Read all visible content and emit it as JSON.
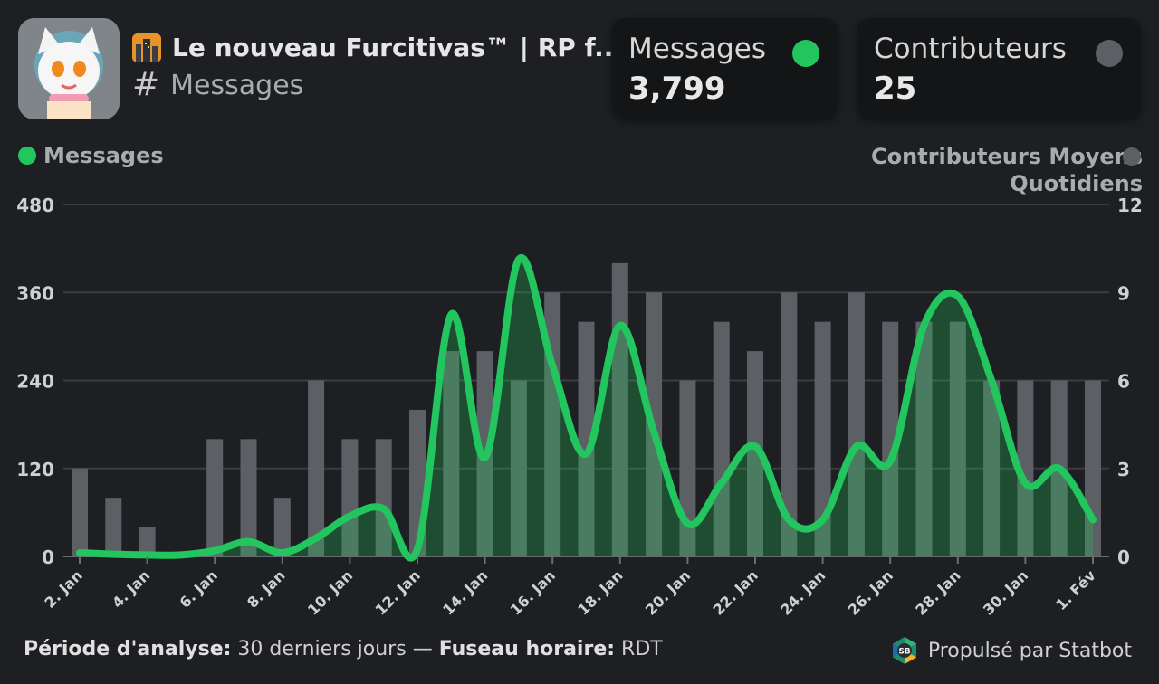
{
  "header": {
    "server_name": "Le nouveau Furcitivas™ | RP f...",
    "channel_name": "Messages",
    "server_icon": "city-icon",
    "channel_icon": "hash-icon"
  },
  "stats": {
    "messages": {
      "label": "Messages",
      "value": "3,799",
      "color": "#22c55e"
    },
    "contributors": {
      "label": "Contributeurs",
      "value": "25",
      "color": "#5c5f63"
    }
  },
  "legend": {
    "left": "Messages",
    "right": "Contributeurs Moyens\nQuotidiens"
  },
  "footer": {
    "period_label": "Période d'analyse:",
    "period_value": "30 derniers jours",
    "separator": "—",
    "tz_label": "Fuseau horaire:",
    "tz_value": "RDT",
    "powered": "Propulsé par Statbot"
  },
  "chart_data": {
    "type": "bar+line",
    "dates": [
      "2. Jan",
      "3. Jan",
      "4. Jan",
      "5. Jan",
      "6. Jan",
      "7. Jan",
      "8. Jan",
      "9. Jan",
      "10. Jan",
      "11. Jan",
      "12. Jan",
      "13. Jan",
      "14. Jan",
      "15. Jan",
      "16. Jan",
      "17. Jan",
      "18. Jan",
      "19. Jan",
      "20. Jan",
      "21. Jan",
      "22. Jan",
      "23. Jan",
      "24. Jan",
      "25. Jan",
      "26. Jan",
      "27. Jan",
      "28. Jan",
      "29. Jan",
      "30. Jan",
      "31. Jan",
      "1. Fév"
    ],
    "x_tick_labels": [
      "2. Jan",
      "4. Jan",
      "6. Jan",
      "8. Jan",
      "10. Jan",
      "12. Jan",
      "14. Jan",
      "16. Jan",
      "18. Jan",
      "20. Jan",
      "22. Jan",
      "24. Jan",
      "26. Jan",
      "28. Jan",
      "30. Jan",
      "1. Fév"
    ],
    "series": [
      {
        "name": "Messages",
        "axis": "left",
        "kind": "line-area",
        "color": "#22c55e",
        "values": [
          5,
          3,
          2,
          2,
          8,
          20,
          5,
          25,
          55,
          65,
          10,
          330,
          135,
          405,
          260,
          140,
          315,
          170,
          45,
          100,
          150,
          50,
          50,
          150,
          130,
          315,
          355,
          240,
          100,
          120,
          50
        ]
      },
      {
        "name": "Contributeurs Moyens Quotidiens",
        "axis": "right",
        "kind": "bar",
        "color": "#5c5f63",
        "values": [
          3,
          2,
          1,
          0,
          4,
          4,
          2,
          6,
          4,
          4,
          5,
          7,
          7,
          6,
          9,
          8,
          10,
          9,
          6,
          8,
          7,
          9,
          8,
          9,
          8,
          8,
          8,
          6,
          6,
          6,
          6
        ]
      }
    ],
    "y_left": {
      "min": 0,
      "max": 480,
      "ticks": [
        0,
        120,
        240,
        360,
        480
      ]
    },
    "y_right": {
      "min": 0,
      "max": 12,
      "ticks": [
        0,
        3,
        6,
        9,
        12
      ]
    },
    "grid": true
  }
}
